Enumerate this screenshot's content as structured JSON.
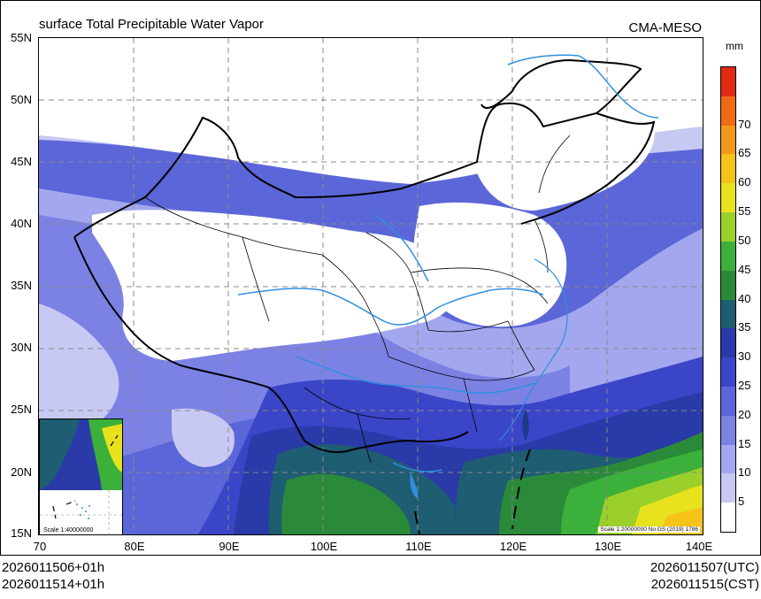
{
  "title": "surface Total Precipitable Water Vapor",
  "model": "CMA-MESO",
  "unit": "mm",
  "lat_labels": [
    "55N",
    "50N",
    "45N",
    "40N",
    "35N",
    "30N",
    "25N",
    "20N",
    "15N"
  ],
  "lon_labels": [
    "70",
    "80E",
    "90E",
    "100E",
    "110E",
    "120E",
    "130E",
    "140E"
  ],
  "colorbar": {
    "levels": [
      "5",
      "10",
      "15",
      "20",
      "25",
      "30",
      "35",
      "40",
      "45",
      "50",
      "55",
      "60",
      "65",
      "70"
    ],
    "colors": [
      "#ffffff",
      "#c7c9f3",
      "#a3a7ee",
      "#7b82e4",
      "#5b66d8",
      "#3b45c8",
      "#2a3aa8",
      "#1e5d72",
      "#2b8a3a",
      "#3bb03b",
      "#9bcf2b",
      "#e8e21e",
      "#f6c31b",
      "#f39a1a",
      "#ef6b16",
      "#e02a12"
    ]
  },
  "inset_scale": "Scale 1:40000000",
  "map_scale": "Scale 1:20000000 No:GS (2019) 1786",
  "footer": {
    "left_line1": "2026011506+01h",
    "left_line2": "2026011514+01h",
    "right_line1": "2026011507(UTC)",
    "right_line2": "2026011515(CST)"
  }
}
